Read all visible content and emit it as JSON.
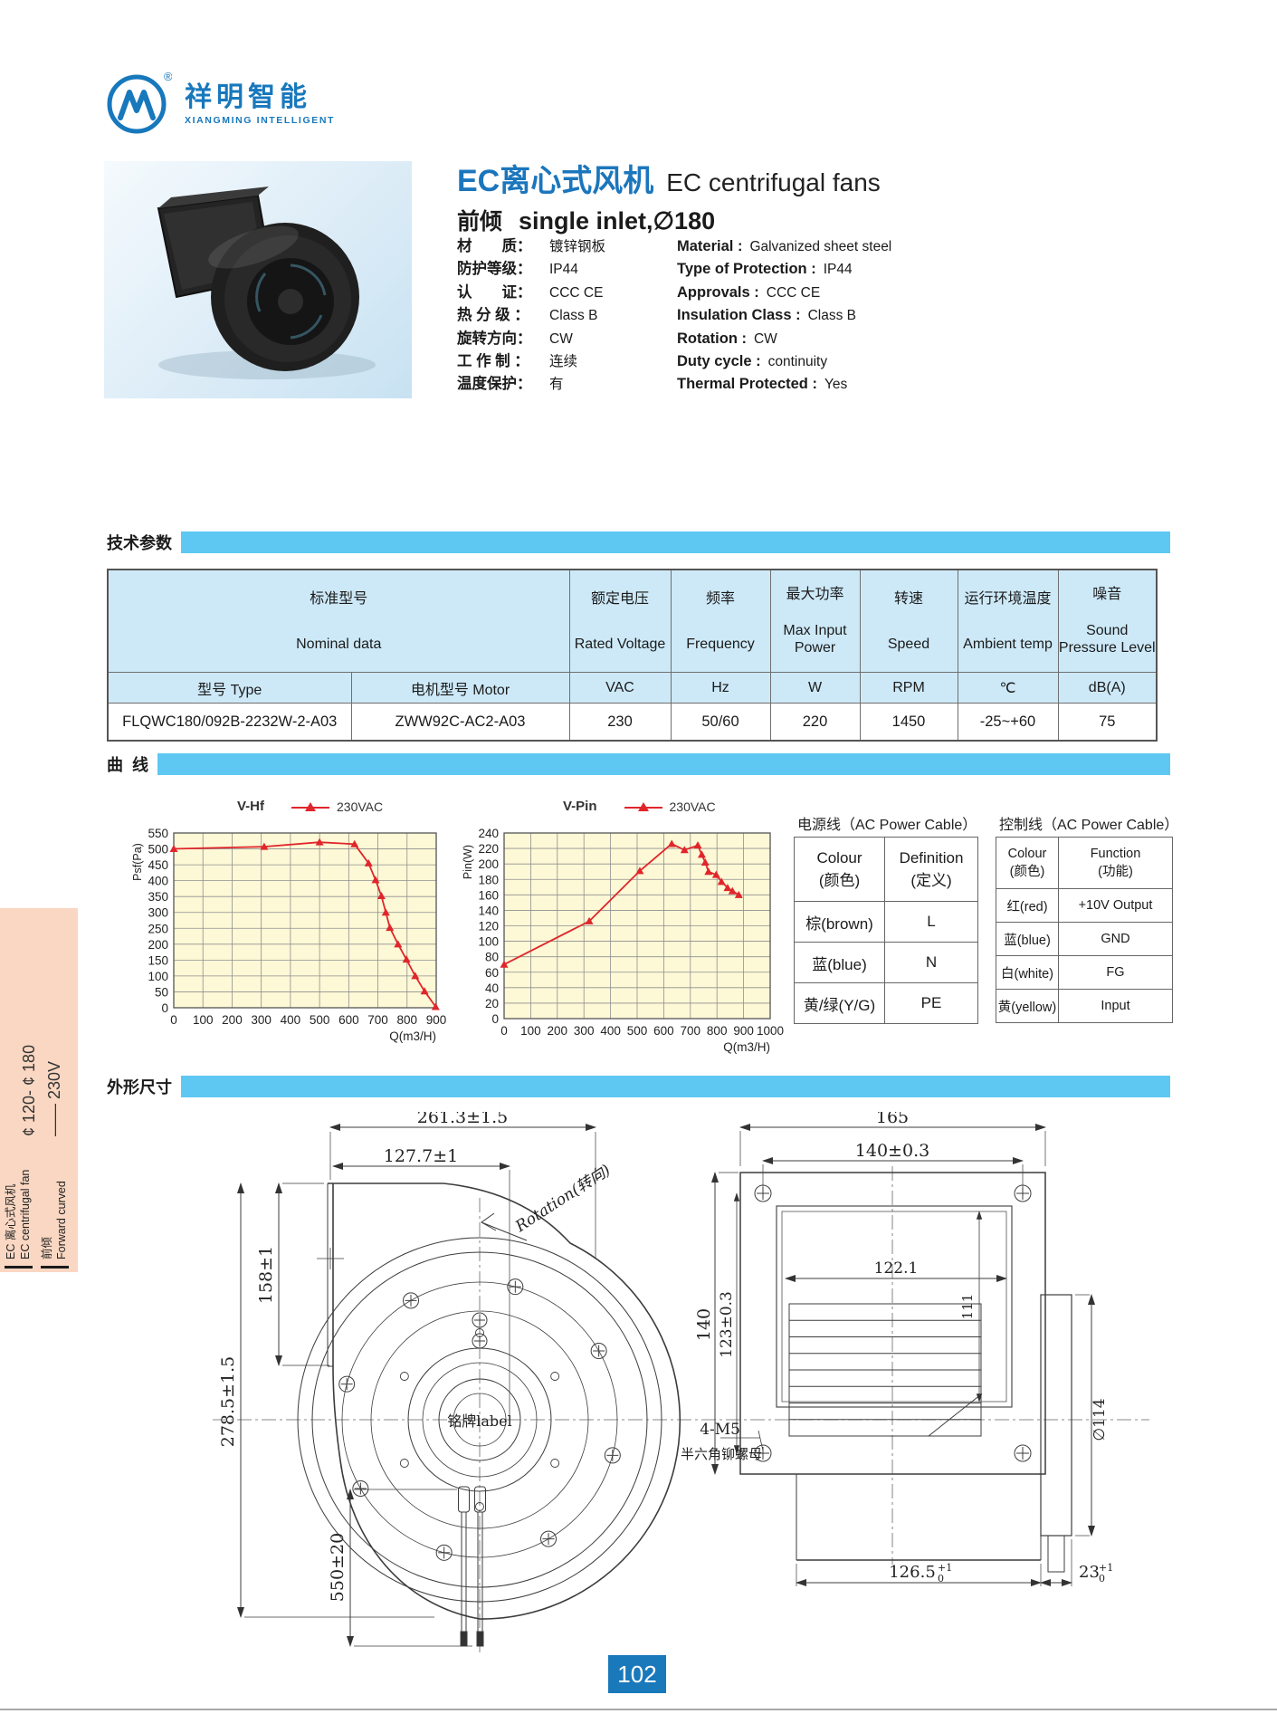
{
  "brand": {
    "logo_cn": "祥明智能",
    "logo_en": "XIANGMING INTELLIGENT",
    "registered": "®",
    "brand_color": "#1878bc"
  },
  "product": {
    "title_cn": "EC离心式风机",
    "title_en": "EC centrifugal fans",
    "subtitle_cn": "前倾",
    "subtitle_en": "single inlet,∅180",
    "specs": [
      {
        "cn_label": "材　　质：",
        "cn_value": "镀锌钢板",
        "en_label": "Material :",
        "en_value": "Galvanized sheet steel"
      },
      {
        "cn_label": "防护等级：",
        "cn_value": "IP44",
        "en_label": "Type of Protection :",
        "en_value": "IP44"
      },
      {
        "cn_label": "认　　证：",
        "cn_value": "CCC  CE",
        "en_label": "Approvals :",
        "en_value": "CCC  CE"
      },
      {
        "cn_label": "热 分 级 ：",
        "cn_value": "Class B",
        "en_label": "Insulation Class :",
        "en_value": "Class B"
      },
      {
        "cn_label": "旋转方向：",
        "cn_value": "CW",
        "en_label": "Rotation :",
        "en_value": "CW"
      },
      {
        "cn_label": "工 作 制 ：",
        "cn_value": "连续",
        "en_label": "Duty cycle :",
        "en_value": "continuity"
      },
      {
        "cn_label": "温度保护：",
        "cn_value": "有",
        "en_label": "Thermal Protected :",
        "en_value": "Yes"
      }
    ]
  },
  "sections": {
    "tech": "技术参数",
    "curve": "曲  线",
    "dimension": "外形尺寸"
  },
  "tech_table": {
    "header": {
      "nominal_cn": "标准型号",
      "nominal_en": "Nominal data",
      "type_label": "型号  Type",
      "motor_label": "电机型号  Motor",
      "cols": [
        {
          "cn": "额定电压",
          "en": "Rated Voltage",
          "unit": "VAC"
        },
        {
          "cn": "频率",
          "en": "Frequency",
          "unit": "Hz"
        },
        {
          "cn": "最大功率",
          "en": "Max Input Power",
          "unit": "W"
        },
        {
          "cn": "转速",
          "en": "Speed",
          "unit": "RPM"
        },
        {
          "cn": "运行环境温度",
          "en": "Ambient temp",
          "unit": "℃"
        },
        {
          "cn": "噪音",
          "en": "Sound Pressure Level",
          "unit": "dB(A)"
        }
      ]
    },
    "row": {
      "type": "FLQWC180/092B-2232W-2-A03",
      "motor": "ZWW92C-AC2-A03",
      "values": [
        "230",
        "50/60",
        "220",
        "1450",
        "-25~+60",
        "75"
      ]
    }
  },
  "chart_data": [
    {
      "type": "line",
      "title": "V-Hf",
      "legend": [
        "230VAC"
      ],
      "xlabel": "Q(m3/H)",
      "ylabel": "Psf(Pa)",
      "xlim": [
        0,
        900
      ],
      "ylim": [
        0,
        550
      ],
      "xtick_step": 100,
      "ytick_step": 50,
      "grid": true,
      "line_color": "#e0262b",
      "plot_bg": "#fdf8d6",
      "series": [
        {
          "name": "230VAC",
          "points": [
            [
              0,
              500
            ],
            [
              310,
              507
            ],
            [
              500,
              521
            ],
            [
              620,
              515
            ],
            [
              668,
              455
            ],
            [
              692,
              402
            ],
            [
              712,
              352
            ],
            [
              727,
              300
            ],
            [
              741,
              252
            ],
            [
              769,
              200
            ],
            [
              798,
              152
            ],
            [
              828,
              100
            ],
            [
              860,
              52
            ],
            [
              898,
              3
            ]
          ]
        }
      ]
    },
    {
      "type": "line",
      "title": "V-Pin",
      "legend": [
        "230VAC"
      ],
      "xlabel": "Q(m3/H)",
      "ylabel": "Pin(W)",
      "xlim": [
        0,
        1000
      ],
      "ylim": [
        0,
        240
      ],
      "xtick_step": 100,
      "ytick_step": 20,
      "grid": true,
      "line_color": "#e0262b",
      "plot_bg": "#fdf8d6",
      "series": [
        {
          "name": "230VAC",
          "points": [
            [
              0,
              70
            ],
            [
              320,
              126
            ],
            [
              510,
              191
            ],
            [
              630,
              226
            ],
            [
              678,
              218
            ],
            [
              728,
              224
            ],
            [
              743,
              212
            ],
            [
              756,
              202
            ],
            [
              768,
              190
            ],
            [
              797,
              186
            ],
            [
              817,
              177
            ],
            [
              840,
              169
            ],
            [
              858,
              165
            ],
            [
              882,
              160
            ]
          ]
        }
      ]
    }
  ],
  "cable_tables": [
    {
      "title": "电源线（AC Power Cable）",
      "headers": [
        [
          "Colour",
          "(颜色)"
        ],
        [
          "Definition",
          "(定义)"
        ]
      ],
      "rows": [
        [
          "棕(brown)",
          "L"
        ],
        [
          "蓝(blue)",
          "N"
        ],
        [
          "黄/绿(Y/G)",
          "PE"
        ]
      ]
    },
    {
      "title": "控制线（AC Power Cable）",
      "headers": [
        [
          "Colour",
          "(颜色)"
        ],
        [
          "Function",
          "(功能)"
        ]
      ],
      "rows": [
        [
          "红(red)",
          "+10V Output"
        ],
        [
          "蓝(blue)",
          "GND"
        ],
        [
          "白(white)",
          "FG"
        ],
        [
          "黄(yellow)",
          "Input"
        ]
      ]
    }
  ],
  "drawings": {
    "left": {
      "dim_total_width": "261.3±1.5",
      "dim_inlet_width": "127.7±1",
      "dim_inlet_height": "158±1",
      "dim_total_height": "278.5±1.5",
      "dim_cable_length": "550±20",
      "rotation_label": "Rotation(转向)",
      "nameplate_label": "铭牌label"
    },
    "right": {
      "dim_flange_width": "165",
      "dim_hole_spacing_w": "140±0.3",
      "dim_inner_width": "122.1",
      "dim_inner_height": "111",
      "dim_flange_height": "140",
      "dim_hole_spacing_h": "123±0.3",
      "screw_spec": "4-M5",
      "screw_note": "半六角铆螺母",
      "dim_motor_dia": "∅114",
      "dim_depth": "126.5",
      "dim_depth_tol_up": "+1",
      "dim_depth_tol_down": "0",
      "dim_outlet": "23",
      "dim_outlet_tol_up": "+1",
      "dim_outlet_tol_down": "0"
    }
  },
  "sidebar": {
    "volt": "—— 230V",
    "range": "¢ 120- ¢ 180",
    "cat_cn": "EC 离心式风机",
    "cat_en": "EC centrifugal fan",
    "sub_cn": "前倾",
    "sub_en": "Forward curved"
  },
  "page": {
    "number": "102"
  }
}
